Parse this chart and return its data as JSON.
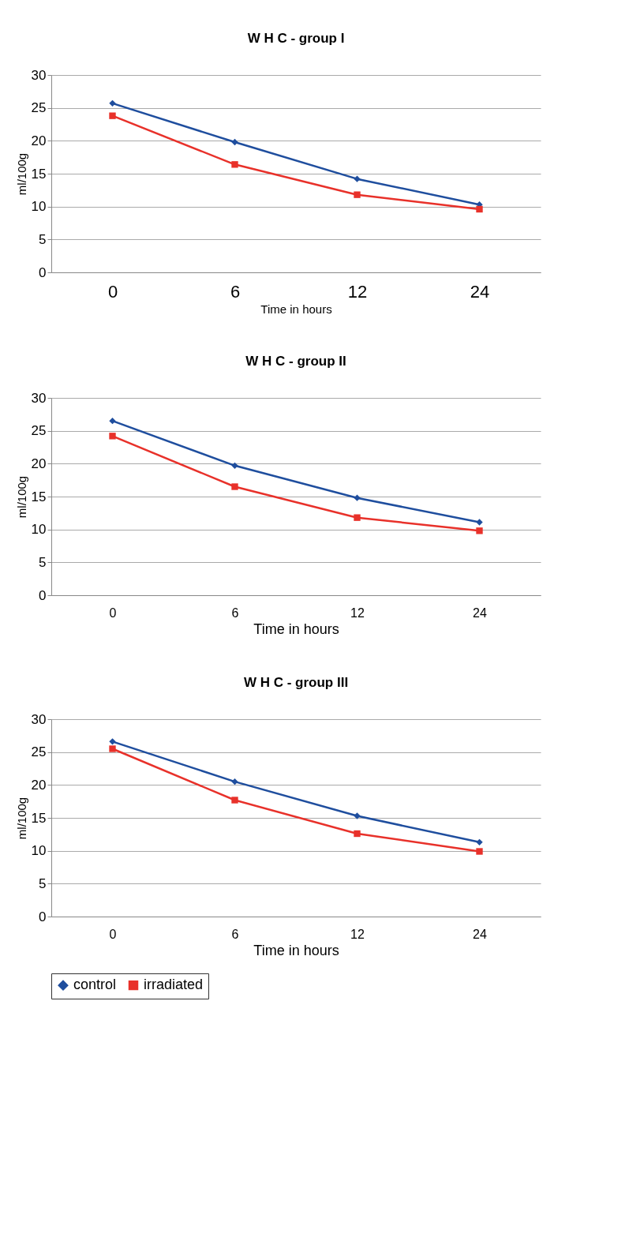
{
  "chart_data": [
    {
      "type": "line",
      "title": "W H C  - group I",
      "xlabel": "Time in hours",
      "ylabel": "ml/100g",
      "categories": [
        "0",
        "6",
        "12",
        "24"
      ],
      "ylim": [
        0,
        30
      ],
      "yticks": [
        0,
        5,
        10,
        15,
        20,
        25,
        30
      ],
      "grid": "y",
      "legend": false,
      "series": [
        {
          "color": "#1f4e9e",
          "marker": "diamond",
          "values": [
            25.7,
            19.8,
            14.2,
            10.3
          ]
        },
        {
          "color": "#e8312a",
          "marker": "square",
          "values": [
            23.8,
            16.4,
            11.8,
            9.6
          ]
        }
      ]
    },
    {
      "type": "line",
      "title": "W H C - group II",
      "xlabel": "Time in hours",
      "ylabel": "ml/100g",
      "categories": [
        "0",
        "6",
        "12",
        "24"
      ],
      "ylim": [
        0,
        30
      ],
      "yticks": [
        0,
        5,
        10,
        15,
        20,
        25,
        30
      ],
      "grid": "y",
      "legend": false,
      "series": [
        {
          "color": "#1f4e9e",
          "marker": "diamond",
          "values": [
            26.5,
            19.7,
            14.8,
            11.1
          ]
        },
        {
          "color": "#e8312a",
          "marker": "square",
          "values": [
            24.2,
            16.5,
            11.8,
            9.8
          ]
        }
      ]
    },
    {
      "type": "line",
      "title": "W H C - group III",
      "xlabel": "Time in hours",
      "ylabel": "ml/100g",
      "categories": [
        "0",
        "6",
        "12",
        "24"
      ],
      "ylim": [
        0,
        30
      ],
      "yticks": [
        0,
        5,
        10,
        15,
        20,
        25,
        30
      ],
      "grid": "y",
      "legend": "bottom",
      "series": [
        {
          "name": "control",
          "color": "#1f4e9e",
          "marker": "diamond",
          "values": [
            26.6,
            20.5,
            15.3,
            11.3
          ]
        },
        {
          "name": "irradiated",
          "color": "#e8312a",
          "marker": "square",
          "values": [
            25.5,
            17.7,
            12.6,
            9.9
          ]
        }
      ]
    }
  ]
}
